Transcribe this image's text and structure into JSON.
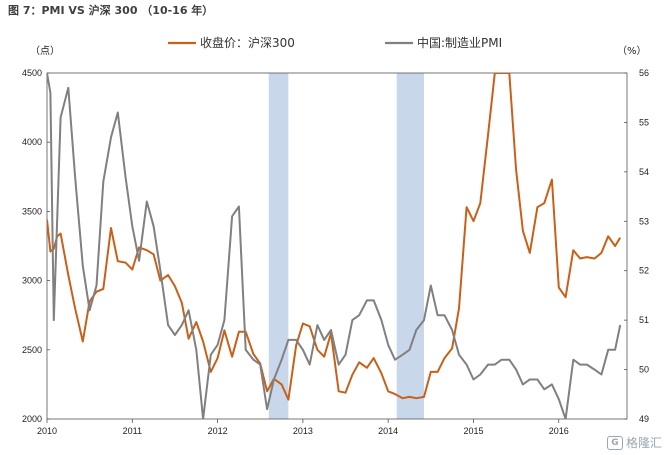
{
  "caption": "图 7：PMI VS 沪深 300 （10-16 年）",
  "watermark": {
    "text": "格隆汇",
    "icon": "watermark-logo-icon"
  },
  "chart_data": {
    "type": "line",
    "title": "",
    "left_axis": {
      "unit": "（点）",
      "min": 2000,
      "max": 4500,
      "ticks": [
        2000,
        2500,
        3000,
        3500,
        4000,
        4500
      ]
    },
    "right_axis": {
      "unit": "（%）",
      "min": 49,
      "max": 56,
      "ticks": [
        49,
        50,
        51,
        52,
        53,
        54,
        55,
        56
      ]
    },
    "x_axis": {
      "min": 2010,
      "max": 2016.8,
      "ticks": [
        "2010",
        "2011",
        "2012",
        "2013",
        "2014",
        "2015",
        "2016"
      ]
    },
    "legend": [
      "收盘价：沪深300",
      "中国:制造业PMI"
    ],
    "shaded_regions": [
      [
        2012.6,
        2012.83
      ],
      [
        2014.1,
        2014.42
      ]
    ],
    "series": [
      {
        "name": "收盘价：沪深300",
        "axis": "left",
        "color": "#c8601a",
        "points": [
          [
            2010.0,
            3440
          ],
          [
            2010.04,
            3210
          ],
          [
            2010.08,
            3230
          ],
          [
            2010.12,
            3320
          ],
          [
            2010.16,
            3340
          ],
          [
            2010.25,
            3040
          ],
          [
            2010.33,
            2800
          ],
          [
            2010.42,
            2560
          ],
          [
            2010.5,
            2850
          ],
          [
            2010.58,
            2920
          ],
          [
            2010.66,
            2940
          ],
          [
            2010.75,
            3380
          ],
          [
            2010.83,
            3140
          ],
          [
            2010.92,
            3130
          ],
          [
            2011.0,
            3080
          ],
          [
            2011.08,
            3240
          ],
          [
            2011.17,
            3220
          ],
          [
            2011.25,
            3190
          ],
          [
            2011.33,
            3000
          ],
          [
            2011.42,
            3040
          ],
          [
            2011.5,
            2960
          ],
          [
            2011.58,
            2840
          ],
          [
            2011.66,
            2580
          ],
          [
            2011.75,
            2700
          ],
          [
            2011.83,
            2560
          ],
          [
            2011.92,
            2340
          ],
          [
            2012.0,
            2440
          ],
          [
            2012.08,
            2640
          ],
          [
            2012.17,
            2450
          ],
          [
            2012.25,
            2630
          ],
          [
            2012.33,
            2630
          ],
          [
            2012.42,
            2470
          ],
          [
            2012.5,
            2400
          ],
          [
            2012.58,
            2200
          ],
          [
            2012.66,
            2290
          ],
          [
            2012.75,
            2250
          ],
          [
            2012.83,
            2140
          ],
          [
            2012.92,
            2530
          ],
          [
            2013.0,
            2690
          ],
          [
            2013.08,
            2670
          ],
          [
            2013.17,
            2500
          ],
          [
            2013.25,
            2450
          ],
          [
            2013.33,
            2620
          ],
          [
            2013.42,
            2200
          ],
          [
            2013.5,
            2190
          ],
          [
            2013.58,
            2320
          ],
          [
            2013.66,
            2410
          ],
          [
            2013.75,
            2370
          ],
          [
            2013.83,
            2440
          ],
          [
            2013.92,
            2330
          ],
          [
            2014.0,
            2200
          ],
          [
            2014.08,
            2180
          ],
          [
            2014.17,
            2150
          ],
          [
            2014.25,
            2160
          ],
          [
            2014.33,
            2150
          ],
          [
            2014.42,
            2160
          ],
          [
            2014.5,
            2340
          ],
          [
            2014.58,
            2340
          ],
          [
            2014.66,
            2440
          ],
          [
            2014.75,
            2510
          ],
          [
            2014.83,
            2800
          ],
          [
            2014.92,
            3530
          ],
          [
            2015.0,
            3430
          ],
          [
            2015.08,
            3560
          ],
          [
            2015.17,
            4050
          ],
          [
            2015.25,
            4500
          ],
          [
            2015.42,
            4500
          ],
          [
            2015.5,
            3800
          ],
          [
            2015.58,
            3360
          ],
          [
            2015.66,
            3200
          ],
          [
            2015.75,
            3530
          ],
          [
            2015.83,
            3560
          ],
          [
            2015.92,
            3730
          ],
          [
            2016.0,
            2950
          ],
          [
            2016.08,
            2880
          ],
          [
            2016.17,
            3220
          ],
          [
            2016.25,
            3160
          ],
          [
            2016.33,
            3170
          ],
          [
            2016.42,
            3160
          ],
          [
            2016.5,
            3200
          ],
          [
            2016.58,
            3320
          ],
          [
            2016.66,
            3250
          ],
          [
            2016.72,
            3310
          ]
        ]
      },
      {
        "name": "中国:制造业PMI",
        "axis": "right",
        "color": "#808080",
        "points": [
          [
            2010.0,
            56.0
          ],
          [
            2010.04,
            55.6
          ],
          [
            2010.08,
            51.0
          ],
          [
            2010.16,
            55.1
          ],
          [
            2010.25,
            55.7
          ],
          [
            2010.33,
            53.9
          ],
          [
            2010.42,
            52.1
          ],
          [
            2010.5,
            51.2
          ],
          [
            2010.58,
            51.7
          ],
          [
            2010.66,
            53.8
          ],
          [
            2010.75,
            54.7
          ],
          [
            2010.83,
            55.2
          ],
          [
            2010.92,
            53.9
          ],
          [
            2011.0,
            52.9
          ],
          [
            2011.08,
            52.2
          ],
          [
            2011.17,
            53.4
          ],
          [
            2011.25,
            52.9
          ],
          [
            2011.33,
            52.0
          ],
          [
            2011.42,
            50.9
          ],
          [
            2011.5,
            50.7
          ],
          [
            2011.58,
            50.9
          ],
          [
            2011.66,
            51.2
          ],
          [
            2011.75,
            50.4
          ],
          [
            2011.83,
            49.0
          ],
          [
            2011.92,
            50.3
          ],
          [
            2012.0,
            50.5
          ],
          [
            2012.08,
            51.0
          ],
          [
            2012.17,
            53.1
          ],
          [
            2012.25,
            53.3
          ],
          [
            2012.33,
            50.4
          ],
          [
            2012.42,
            50.2
          ],
          [
            2012.5,
            50.1
          ],
          [
            2012.58,
            49.2
          ],
          [
            2012.66,
            49.8
          ],
          [
            2012.75,
            50.2
          ],
          [
            2012.83,
            50.6
          ],
          [
            2012.92,
            50.6
          ],
          [
            2013.0,
            50.4
          ],
          [
            2013.08,
            50.1
          ],
          [
            2013.17,
            50.9
          ],
          [
            2013.25,
            50.6
          ],
          [
            2013.33,
            50.8
          ],
          [
            2013.42,
            50.1
          ],
          [
            2013.5,
            50.3
          ],
          [
            2013.58,
            51.0
          ],
          [
            2013.66,
            51.1
          ],
          [
            2013.75,
            51.4
          ],
          [
            2013.83,
            51.4
          ],
          [
            2013.92,
            51.0
          ],
          [
            2014.0,
            50.5
          ],
          [
            2014.08,
            50.2
          ],
          [
            2014.17,
            50.3
          ],
          [
            2014.25,
            50.4
          ],
          [
            2014.33,
            50.8
          ],
          [
            2014.42,
            51.0
          ],
          [
            2014.5,
            51.7
          ],
          [
            2014.58,
            51.1
          ],
          [
            2014.66,
            51.1
          ],
          [
            2014.75,
            50.8
          ],
          [
            2014.83,
            50.3
          ],
          [
            2014.92,
            50.1
          ],
          [
            2015.0,
            49.8
          ],
          [
            2015.08,
            49.9
          ],
          [
            2015.17,
            50.1
          ],
          [
            2015.25,
            50.1
          ],
          [
            2015.33,
            50.2
          ],
          [
            2015.42,
            50.2
          ],
          [
            2015.5,
            50.0
          ],
          [
            2015.58,
            49.7
          ],
          [
            2015.66,
            49.8
          ],
          [
            2015.75,
            49.8
          ],
          [
            2015.83,
            49.6
          ],
          [
            2015.92,
            49.7
          ],
          [
            2016.0,
            49.4
          ],
          [
            2016.08,
            49.0
          ],
          [
            2016.17,
            50.2
          ],
          [
            2016.25,
            50.1
          ],
          [
            2016.33,
            50.1
          ],
          [
            2016.42,
            50.0
          ],
          [
            2016.5,
            49.9
          ],
          [
            2016.58,
            50.4
          ],
          [
            2016.66,
            50.4
          ],
          [
            2016.72,
            50.9
          ]
        ]
      }
    ]
  }
}
